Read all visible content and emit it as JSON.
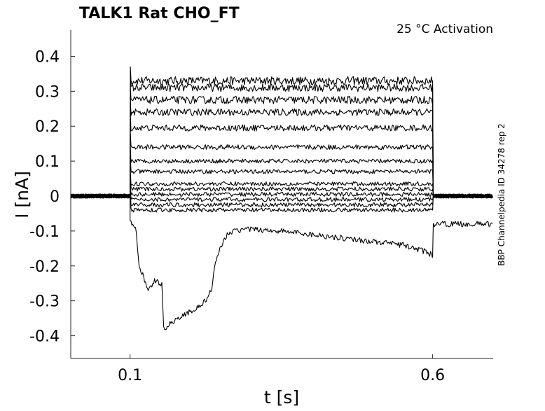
{
  "chart_data": {
    "type": "line",
    "title": "TALK1  Rat  CHO_FT",
    "annotation": "25 °C  Activation",
    "side_label": "BBP Channelpedia ID 34278 rep 2",
    "xlabel": "t [s]",
    "ylabel": "I [nA]",
    "xlim": [
      0.002,
      0.7
    ],
    "ylim": [
      -0.465,
      0.475
    ],
    "xticks": [
      0.1,
      0.6
    ],
    "xtick_labels": [
      "0.1",
      "0.6"
    ],
    "yticks": [
      0.4,
      0.3,
      0.2,
      0.1,
      0,
      -0.1,
      -0.2,
      -0.3,
      -0.4
    ],
    "ytick_labels": [
      "0.4",
      "0.3",
      "0.2",
      "0.1",
      "0",
      "-0.1",
      "-0.2",
      "-0.3",
      "-0.4"
    ],
    "grid": false,
    "legend": "none",
    "line_color": "#000000",
    "stimulus": {
      "start": 0.1,
      "end": 0.6
    },
    "series": [
      {
        "baseline": 0,
        "plateau": 0.33,
        "tail": 0,
        "noise": 0.012
      },
      {
        "baseline": 0,
        "plateau": 0.31,
        "tail": 0,
        "noise": 0.011
      },
      {
        "baseline": 0,
        "plateau": 0.275,
        "tail": 0,
        "noise": 0.011
      },
      {
        "baseline": 0,
        "plateau": 0.24,
        "tail": 0,
        "noise": 0.01
      },
      {
        "baseline": 0,
        "plateau": 0.195,
        "tail": 0,
        "noise": 0.009
      },
      {
        "baseline": 0,
        "plateau": 0.14,
        "tail": 0,
        "noise": 0.007
      },
      {
        "baseline": 0,
        "plateau": 0.1,
        "tail": 0,
        "noise": 0.006
      },
      {
        "baseline": 0,
        "plateau": 0.07,
        "tail": 0,
        "noise": 0.006
      },
      {
        "baseline": 0,
        "plateau": 0.035,
        "tail": 0,
        "noise": 0.006
      },
      {
        "baseline": 0,
        "plateau": 0.02,
        "tail": 0,
        "noise": 0.006
      },
      {
        "baseline": 0,
        "plateau": 0.005,
        "tail": 0,
        "noise": 0.006
      },
      {
        "baseline": 0,
        "plateau": -0.01,
        "tail": 0,
        "noise": 0.006
      },
      {
        "baseline": 0,
        "plateau": -0.025,
        "tail": 0,
        "noise": 0.006
      },
      {
        "baseline": 0,
        "plateau": -0.04,
        "tail": 0,
        "noise": 0.006
      },
      {
        "baseline": 0,
        "tail": -0.08,
        "noise": 0.008,
        "points": [
          [
            0.1,
            -0.07
          ],
          [
            0.11,
            -0.1
          ],
          [
            0.115,
            -0.2
          ],
          [
            0.12,
            -0.22
          ],
          [
            0.13,
            -0.27
          ],
          [
            0.135,
            -0.26
          ],
          [
            0.14,
            -0.24
          ],
          [
            0.153,
            -0.255
          ],
          [
            0.155,
            -0.38
          ],
          [
            0.17,
            -0.36
          ],
          [
            0.2,
            -0.33
          ],
          [
            0.22,
            -0.31
          ],
          [
            0.235,
            -0.27
          ],
          [
            0.24,
            -0.2
          ],
          [
            0.255,
            -0.12
          ],
          [
            0.27,
            -0.1
          ],
          [
            0.3,
            -0.095
          ],
          [
            0.35,
            -0.1
          ],
          [
            0.4,
            -0.11
          ],
          [
            0.45,
            -0.12
          ],
          [
            0.5,
            -0.13
          ],
          [
            0.55,
            -0.14
          ],
          [
            0.59,
            -0.16
          ],
          [
            0.6,
            -0.17
          ]
        ]
      }
    ]
  }
}
